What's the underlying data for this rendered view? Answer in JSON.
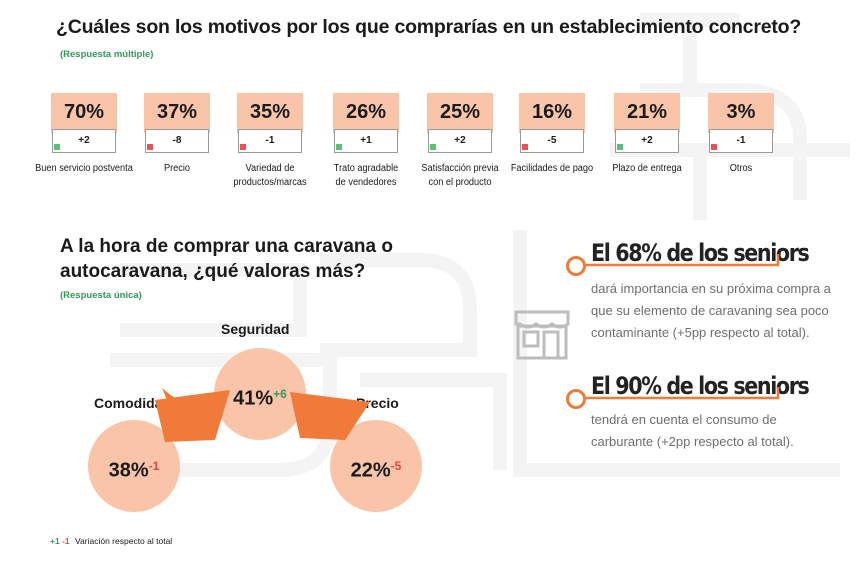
{
  "q1": {
    "title": "¿Cuáles son los motivos por los que comprarías en un establecimiento concreto?",
    "note": "(Respuesta múltiple)"
  },
  "chart_data": [
    {
      "type": "table",
      "title": "¿Cuáles son los motivos por los que comprarías en un establecimiento concreto?",
      "note": "(Respuesta múltiple)",
      "categories": [
        "Buen servicio postventa",
        "Precio",
        "Variedad de productos/marcas",
        "Trato agradable de vendedores",
        "Satisfacción previa con el producto",
        "Facilidades de pago",
        "Plazo de entrega",
        "Otros"
      ],
      "items": [
        {
          "label": "Buen servicio postventa",
          "pct": "70%",
          "value": 70,
          "variation": "+2",
          "sign": "pos"
        },
        {
          "label": "Precio",
          "pct": "37%",
          "value": 37,
          "variation": "-8",
          "sign": "neg"
        },
        {
          "label": "Variedad de productos/marcas",
          "pct": "35%",
          "value": 35,
          "variation": "-1",
          "sign": "neg"
        },
        {
          "label": "Trato agradable de vendedores",
          "pct": "26%",
          "value": 26,
          "variation": "+1",
          "sign": "pos"
        },
        {
          "label": "Satisfacción previa con el producto",
          "pct": "25%",
          "value": 25,
          "variation": "+2",
          "sign": "pos"
        },
        {
          "label": "Facilidades de pago",
          "pct": "16%",
          "value": 16,
          "variation": "-5",
          "sign": "neg"
        },
        {
          "label": "Plazo de entrega",
          "pct": "21%",
          "value": 21,
          "variation": "+2",
          "sign": "pos"
        },
        {
          "label": "Otros",
          "pct": "3%",
          "value": 3,
          "variation": "-1",
          "sign": "neg"
        }
      ]
    },
    {
      "type": "bubble",
      "title": "A la hora de comprar una caravana o autocaravana, ¿qué valoras más?",
      "note": "(Respuesta única)",
      "categories": [
        "Seguridad",
        "Comodidad",
        "Precio"
      ],
      "values": [
        41,
        38,
        22
      ],
      "items": [
        {
          "label": "Seguridad",
          "pct": "41%",
          "variation": "+6",
          "sign": "pos"
        },
        {
          "label": "Comodidad",
          "pct": "38%",
          "variation": "-1",
          "sign": "neg"
        },
        {
          "label": "Precio",
          "pct": "22%",
          "variation": "-5",
          "sign": "neg"
        }
      ]
    }
  ],
  "q2": {
    "title": "A la hora de comprar una caravana o autocaravana, ¿qué valoras más?",
    "note": "(Respuesta única)"
  },
  "stats": [
    {
      "headline": "El 68% de los seniors",
      "body": "dará importancia en su próxima compra a que su elemento de caravaning sea poco contaminante (+5pp respecto al total)."
    },
    {
      "headline": "El 90% de los seniors",
      "body": "tendrá en cuenta el consumo de carburante (+2pp respecto al total)."
    }
  ],
  "legend": {
    "pos": "+1",
    "neg": "-1",
    "text": "Variación respecto al total"
  },
  "colors": {
    "accent": "#f07a3a",
    "bubble": "#f9c4a8",
    "positive": "#2e9a5a",
    "negative": "#e84545"
  },
  "icons": {
    "store": "store-icon"
  }
}
